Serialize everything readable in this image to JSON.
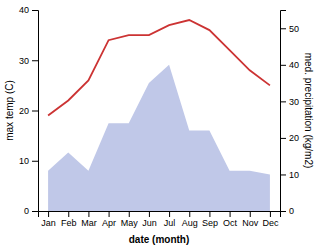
{
  "chart_data": {
    "type": "line",
    "categories": [
      "Jan",
      "Feb",
      "Mar",
      "Apr",
      "May",
      "Jun",
      "Jul",
      "Aug",
      "Sep",
      "Oct",
      "Nov",
      "Dec"
    ],
    "series": [
      {
        "type": "line",
        "color": "#cc3333",
        "values": [
          19,
          22,
          26,
          34,
          35,
          35,
          37,
          38,
          36,
          32,
          28,
          25
        ]
      },
      {
        "type": "area",
        "color": "#c0c8e8",
        "axis": "y2",
        "values": [
          11,
          16,
          11,
          24,
          24,
          35,
          40,
          22,
          22,
          11,
          11,
          10
        ]
      }
    ],
    "x_label": "date (month)",
    "y_label": "max temp (C)",
    "y2_label": "med. precipitation (kg/m2)",
    "ylim": [
      0,
      40
    ],
    "yticks": [
      0,
      10,
      20,
      30,
      40
    ],
    "y2lim": [
      0,
      55
    ],
    "y2ticks": [
      0,
      10,
      20,
      30,
      40,
      50
    ]
  }
}
